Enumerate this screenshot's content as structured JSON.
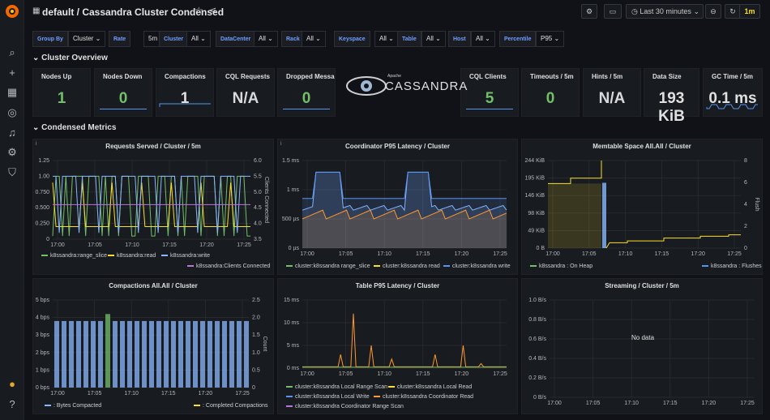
{
  "header": {
    "title": "default / Cassandra Cluster Condensed",
    "time_range": "Last 30 minutes",
    "refresh": "1m"
  },
  "variables": [
    {
      "label": "Group By",
      "value": "Cluster"
    },
    {
      "label": "Rate",
      "value": "5m"
    },
    {
      "label": "Cluster",
      "value": "All"
    },
    {
      "label": "DataCenter",
      "value": "All"
    },
    {
      "label": "Rack",
      "value": "All"
    },
    {
      "label": "Keyspace",
      "value": "All"
    },
    {
      "label": "Table",
      "value": "All"
    },
    {
      "label": "Host",
      "value": "All"
    },
    {
      "label": "Percentile",
      "value": "P95"
    }
  ],
  "rows": {
    "overview": "Cluster Overview",
    "condensed": "Condensed Metrics"
  },
  "logo": {
    "apache": "Apache",
    "name": "CASSANDRA"
  },
  "stats": [
    {
      "title": "Nodes Up",
      "value": "1",
      "color": "#73bf69"
    },
    {
      "title": "Nodes Down",
      "value": "0",
      "color": "#73bf69"
    },
    {
      "title": "Compactions",
      "value": "1",
      "color": "#e0e0e0"
    },
    {
      "title": "CQL Requests",
      "value": "N/A",
      "color": "#d8d9da"
    },
    {
      "title": "Dropped Messages",
      "value": "0",
      "color": "#73bf69"
    },
    {
      "title": "CQL Clients",
      "value": "5",
      "color": "#73bf69"
    },
    {
      "title": "Timeouts / 5m",
      "value": "0",
      "color": "#73bf69"
    },
    {
      "title": "Hints / 5m",
      "value": "N/A",
      "color": "#d8d9da"
    },
    {
      "title": "Data Size",
      "value": "193 KiB",
      "color": "#e0e0e0"
    },
    {
      "title": "GC Time / 5m",
      "value": "0.1 ms",
      "color": "#e0e0e0"
    }
  ],
  "time_ticks": [
    "17:00",
    "17:05",
    "17:10",
    "17:15",
    "17:20",
    "17:25"
  ],
  "panels": {
    "requests": {
      "title": "Requests Served / Cluster / 5m",
      "y_left": [
        "1.25",
        "1.00",
        "0.750",
        "0.500",
        "0.250",
        "0"
      ],
      "y_right": [
        "6.0",
        "5.5",
        "5.0",
        "4.5",
        "4.0",
        "3.5"
      ],
      "right_label": "Clients Connected",
      "legend": [
        "k8ssandra:range_slice",
        "k8ssandra:read",
        "k8ssandra:write",
        "k8ssandra:Clients Connected"
      ]
    },
    "latency": {
      "title": "Coordinator P95 Latency / Cluster",
      "y_left": [
        "1.5 ms",
        "1 ms",
        "500 µs",
        "0 µs"
      ],
      "legend": [
        "cluster:k8ssandra range_slice",
        "cluster:k8ssandra read",
        "cluster:k8ssandra write"
      ]
    },
    "memtable": {
      "title": "Memtable Space All.All / Cluster",
      "y_left": [
        "244 KiB",
        "195 KiB",
        "146 KiB",
        "98 KiB",
        "49 KiB",
        "0 B"
      ],
      "y_right": [
        "8",
        "6",
        "4",
        "2",
        "0"
      ],
      "right_label": "Flush",
      "legend": [
        "k8ssandra : On Heap",
        "k8ssandra : Flushes"
      ]
    },
    "compactions": {
      "title": "Compactions All.All / Cluster",
      "y_left": [
        "5 bps",
        "4 bps",
        "3 bps",
        "2 bps",
        "1 bps",
        "0 bps"
      ],
      "y_right": [
        "2.5",
        "2.0",
        "1.5",
        "1.0",
        "0.5",
        "0"
      ],
      "right_label": "Count",
      "legend": [
        ": Bytes Compacted",
        ": Completed Compactions"
      ]
    },
    "table_latency": {
      "title": "Table P95 Latency / Cluster",
      "y_left": [
        "15 ms",
        "10 ms",
        "5 ms",
        "0 ms"
      ],
      "legend": [
        "cluster:k8ssandra Local Range Scan",
        "cluster:k8ssandra Local Read",
        "cluster:k8ssandra Local Write",
        "cluster:k8ssandra Coordinator Read",
        "cluster:k8ssandra Coordinator Range Scan"
      ]
    },
    "streaming": {
      "title": "Streaming / Cluster / 5m",
      "y_left": [
        "1.0 B/s",
        "0.8 B/s",
        "0.6 B/s",
        "0.4 B/s",
        "0.2 B/s",
        "0 B/s"
      ],
      "no_data": "No data"
    }
  },
  "colors": {
    "green": "#73bf69",
    "yellow": "#fade2a",
    "blue": "#5794f2",
    "orange": "#ff9830",
    "purple": "#b877d9",
    "teal": "#8ab8ff"
  }
}
